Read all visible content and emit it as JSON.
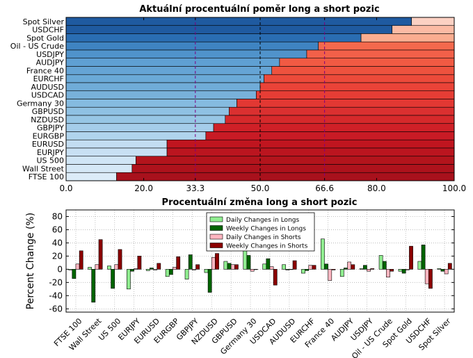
{
  "chart_data": [
    {
      "type": "bar",
      "orientation": "horizontal",
      "stacked": true,
      "title": "Aktuální procentuální poměr long a short pozic",
      "categories": [
        "Spot Silver",
        "USDCHF",
        "Spot Gold",
        "Oil - US Crude",
        "USDJPY",
        "AUDJPY",
        "France 40",
        "EURCHF",
        "AUDUSD",
        "USDCAD",
        "Germany 30",
        "GBPUSD",
        "NZDUSD",
        "GBPJPY",
        "EURGBP",
        "EURUSD",
        "EURJPY",
        "US 500",
        "Wall Street",
        "FTSE 100"
      ],
      "series": [
        {
          "role": "long",
          "values": [
            89,
            84,
            76,
            65,
            62,
            55,
            53,
            51,
            50,
            49,
            44,
            42,
            41,
            38,
            36,
            26,
            26,
            18,
            17,
            13
          ]
        },
        {
          "role": "short",
          "values": [
            11,
            16,
            24,
            35,
            38,
            45,
            47,
            49,
            50,
            51,
            56,
            58,
            59,
            62,
            64,
            74,
            74,
            82,
            83,
            87
          ]
        }
      ],
      "xlim": [
        0,
        100
      ],
      "xticks": [
        {
          "value": 0,
          "label": "0.0",
          "color": "#000000"
        },
        {
          "value": 20,
          "label": "20.0",
          "color": "#000000"
        },
        {
          "value": 33.3,
          "label": "33.3",
          "color": "#800080"
        },
        {
          "value": 50,
          "label": "50.0",
          "color": "#000000"
        },
        {
          "value": 66.6,
          "label": "66.6",
          "color": "#800080"
        },
        {
          "value": 80,
          "label": "80.0",
          "color": "#000000"
        },
        {
          "value": 100,
          "label": "100.0",
          "color": "#000000"
        }
      ],
      "reference_lines": [
        {
          "value": 33.3,
          "color": "#800080"
        },
        {
          "value": 50,
          "color": "#000000"
        },
        {
          "value": 66.6,
          "color": "#800080"
        }
      ],
      "colors": {
        "long": [
          "#1f5aa0",
          "#1f5aa0",
          "#2a6db2",
          "#3f84c2",
          "#5093cb",
          "#5fa0d3",
          "#65a4d5",
          "#6aa9d7",
          "#70acd8",
          "#78b1da",
          "#85bbe0",
          "#8fc1e3",
          "#97c6e5",
          "#a5cdea",
          "#b0d4ed",
          "#c3ddf1",
          "#c8e0f3",
          "#d0e5f5",
          "#d5e8f6",
          "#dcecf8"
        ],
        "short": [
          "#fcd1c3",
          "#fcbba4",
          "#fbad90",
          "#f4694d",
          "#f26049",
          "#f15a43",
          "#ee523e",
          "#ec4a3a",
          "#ea4338",
          "#e63d35",
          "#e23833",
          "#da3030",
          "#d5292b",
          "#cf2027",
          "#c81b25",
          "#c0151f",
          "#bb151f",
          "#b3141c",
          "#ae121c",
          "#a8111c"
        ]
      }
    },
    {
      "type": "bar",
      "title": "Procentuální změna long a short pozic",
      "ylabel": "Percent Change (%)",
      "ylim": [
        -65,
        90
      ],
      "yticks": [
        -60,
        -40,
        -20,
        0,
        20,
        40,
        60,
        80
      ],
      "categories": [
        "FTSE 100",
        "Wall Street",
        "US 500",
        "EURJPY",
        "EURUSD",
        "EURGBP",
        "GBPJPY",
        "NZDUSD",
        "GBPUSD",
        "Germany 30",
        "USDCAD",
        "AUDUSD",
        "EURCHF",
        "France 40",
        "AUDJPY",
        "USDJPY",
        "Oil - US Crude",
        "Spot Gold",
        "USDCHF",
        "Spot Silver"
      ],
      "series": [
        {
          "name": "Daily Changes in Longs",
          "color": "#90ee90",
          "values": [
            -1,
            3,
            5,
            -30,
            -2,
            -11,
            -15,
            -5,
            12,
            29,
            8,
            7,
            -6,
            46,
            -11,
            1,
            21,
            -3,
            12,
            1
          ]
        },
        {
          "name": "Weekly Changes in Longs",
          "color": "#006400",
          "values": [
            -14,
            -50,
            -29,
            -3,
            2,
            -8,
            22,
            -35,
            9,
            21,
            16,
            -1,
            -2,
            8,
            2,
            6,
            12,
            -6,
            37,
            -3
          ]
        },
        {
          "name": "Daily Changes in Shorts",
          "color": "#ffb6c1",
          "values": [
            8,
            7,
            7,
            1,
            -1,
            3,
            -1,
            18,
            7,
            -3,
            4,
            0,
            6,
            -17,
            11,
            -3,
            -12,
            -1,
            -22,
            -7
          ]
        },
        {
          "name": "Weekly Changes in Shorts",
          "color": "#8b0000",
          "values": [
            28,
            45,
            30,
            20,
            9,
            19,
            7,
            24,
            7,
            0,
            -24,
            13,
            6,
            -1,
            7,
            1,
            -3,
            35,
            -29,
            9
          ]
        }
      ],
      "legend": {
        "position": "top-center"
      }
    }
  ]
}
